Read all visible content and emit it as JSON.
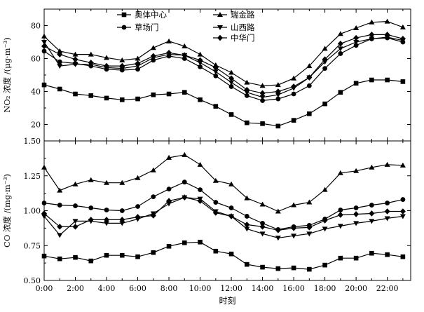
{
  "chart_data": [
    {
      "type": "line",
      "ylabel": "NO₂ 浓度 /(μg·m⁻³)",
      "ylim": [
        10,
        90
      ],
      "yticks": [
        20,
        40,
        60,
        80
      ],
      "x": [
        0,
        1,
        2,
        3,
        4,
        5,
        6,
        7,
        8,
        9,
        10,
        11,
        12,
        13,
        14,
        15,
        16,
        17,
        18,
        19,
        20,
        21,
        22,
        23
      ],
      "series": [
        {
          "name": "奥体中心",
          "marker": "square",
          "values": [
            44,
            41.5,
            38.5,
            37.5,
            36,
            35,
            35.5,
            38,
            38.5,
            39.5,
            35,
            31,
            26,
            21,
            20.5,
            19,
            22.5,
            26.5,
            32.5,
            39.5,
            45,
            47,
            47,
            46
          ]
        },
        {
          "name": "草场门",
          "marker": "circle",
          "values": [
            64.5,
            58,
            57,
            55.5,
            53.5,
            53,
            53.5,
            59,
            61.5,
            60,
            55,
            49.5,
            43,
            37.5,
            34.5,
            35.5,
            38.5,
            43.5,
            54,
            63,
            68,
            72,
            72.5,
            70
          ]
        },
        {
          "name": "瑞金路",
          "marker": "triangle-up",
          "values": [
            73.5,
            64.5,
            62.5,
            62.5,
            60.5,
            59,
            60,
            66.5,
            70.5,
            67.5,
            62.5,
            56,
            51.5,
            45.5,
            43.5,
            44,
            48,
            55.5,
            66,
            75,
            78.5,
            82,
            82.5,
            79
          ]
        },
        {
          "name": "山西路",
          "marker": "triangle-down",
          "values": [
            70,
            55.5,
            56.5,
            56.5,
            54.5,
            54,
            55.5,
            60.5,
            62.5,
            62,
            57.5,
            52,
            45.5,
            39.5,
            36.5,
            38,
            42,
            48.5,
            58,
            66,
            70,
            72,
            73,
            71
          ]
        },
        {
          "name": "中华门",
          "marker": "diamond",
          "values": [
            67.5,
            62.5,
            59.5,
            57.5,
            55.5,
            55.5,
            57,
            61.5,
            63.5,
            62,
            59,
            54.5,
            48,
            41,
            39,
            40,
            43,
            48.5,
            59.5,
            69,
            72.5,
            74.5,
            74.5,
            72
          ]
        }
      ]
    },
    {
      "type": "line",
      "ylabel": "CO 浓度 /(mg·m⁻³)",
      "xlabel": "时刻",
      "ylim": [
        0.5,
        1.5
      ],
      "yticks": [
        "0.50",
        "0.75",
        "1.00",
        "1.25",
        "1.50"
      ],
      "xticks": [
        "0:00",
        "2:00",
        "4:00",
        "6:00",
        "8:00",
        "10:00",
        "12:00",
        "14:00",
        "16:00",
        "18:00",
        "20:00",
        "22:00"
      ],
      "x": [
        0,
        1,
        2,
        3,
        4,
        5,
        6,
        7,
        8,
        9,
        10,
        11,
        12,
        13,
        14,
        15,
        16,
        17,
        18,
        19,
        20,
        21,
        22,
        23
      ],
      "series": [
        {
          "name": "奥体中心",
          "marker": "square",
          "values": [
            0.675,
            0.655,
            0.665,
            0.64,
            0.68,
            0.68,
            0.67,
            0.7,
            0.745,
            0.77,
            0.775,
            0.71,
            0.69,
            0.615,
            0.595,
            0.585,
            0.59,
            0.58,
            0.61,
            0.66,
            0.66,
            0.695,
            0.685,
            0.67
          ]
        },
        {
          "name": "草场门",
          "marker": "circle",
          "values": [
            1.055,
            1.04,
            1.035,
            1.02,
            1.005,
            1.0,
            1.03,
            1.1,
            1.155,
            1.205,
            1.15,
            1.06,
            1.02,
            0.96,
            0.91,
            0.865,
            0.885,
            0.895,
            0.94,
            1.005,
            1.02,
            1.04,
            1.055,
            1.08
          ]
        },
        {
          "name": "瑞金路",
          "marker": "triangle-up",
          "values": [
            1.31,
            1.145,
            1.19,
            1.22,
            1.2,
            1.2,
            1.235,
            1.29,
            1.38,
            1.4,
            1.33,
            1.215,
            1.19,
            1.09,
            1.045,
            0.995,
            1.04,
            1.06,
            1.15,
            1.27,
            1.285,
            1.31,
            1.33,
            1.325
          ]
        },
        {
          "name": "山西路",
          "marker": "triangle-down",
          "values": [
            0.96,
            0.825,
            0.925,
            0.925,
            0.91,
            0.91,
            0.94,
            0.98,
            1.05,
            1.095,
            1.085,
            0.995,
            0.96,
            0.87,
            0.835,
            0.805,
            0.82,
            0.835,
            0.87,
            0.89,
            0.91,
            0.925,
            0.945,
            0.96
          ]
        },
        {
          "name": "中华门",
          "marker": "diamond",
          "values": [
            0.98,
            0.885,
            0.885,
            0.935,
            0.935,
            0.935,
            0.955,
            0.965,
            1.07,
            1.095,
            1.07,
            0.985,
            0.96,
            0.9,
            0.885,
            0.86,
            0.875,
            0.88,
            0.93,
            0.97,
            0.975,
            0.98,
            0.995,
            0.995
          ]
        }
      ]
    }
  ]
}
